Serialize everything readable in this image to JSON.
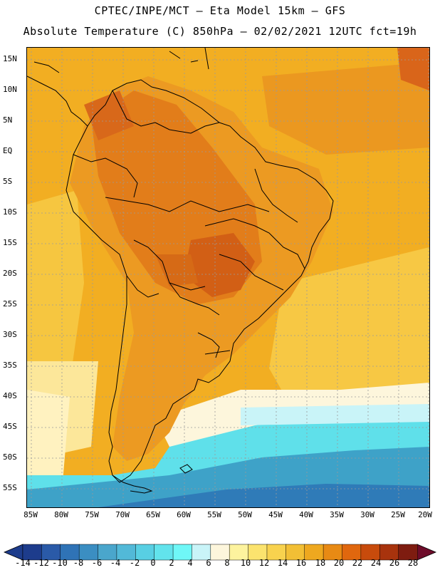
{
  "titles": {
    "line1": "CPTEC/INPE/MCT –  Eta Model 15km – GFS",
    "line2": "Absolute Temperature (C) 850hPa – 02/02/2021 12UTC fct=19h"
  },
  "lat_labels": [
    "15N",
    "10N",
    "5N",
    "EQ",
    "5S",
    "10S",
    "15S",
    "20S",
    "25S",
    "30S",
    "35S",
    "40S",
    "45S",
    "50S",
    "55S"
  ],
  "lon_labels": [
    "85W",
    "80W",
    "75W",
    "70W",
    "65W",
    "60W",
    "55W",
    "50W",
    "45W",
    "40W",
    "35W",
    "30W",
    "25W",
    "20W"
  ],
  "colorbar": {
    "labels": [
      "-14",
      "-12",
      "-10",
      "-8",
      "-6",
      "-4",
      "-2",
      "0",
      "2",
      "4",
      "6",
      "8",
      "10",
      "12",
      "14",
      "16",
      "18",
      "20",
      "22",
      "24",
      "26",
      "28"
    ],
    "colors": [
      "#1d3c8c",
      "#2a5aa8",
      "#2f73b6",
      "#3b8ec2",
      "#4aa6cc",
      "#52b9d8",
      "#58cfe3",
      "#62e3ec",
      "#6ff7f7",
      "#c9f4f8",
      "#fdf6dc",
      "#fdf39e",
      "#fbe36e",
      "#f8d24e",
      "#f2bf35",
      "#eea81f",
      "#e88a14",
      "#e0670e",
      "#c84b0c",
      "#a8330d",
      "#7e1c10"
    ],
    "under_color": "#1d3c8c",
    "over_color": "#6e0c2a"
  },
  "colors": {
    "ocean_base": "#f2ae22",
    "land_warm": "#e27d1a",
    "land_hot": "#d25f15",
    "south_cool": "#fce79a",
    "pale": "#fff7dc",
    "cyan": "#5fe0ea",
    "blue": "#3ea2c8",
    "deep_blue": "#2f7bb8"
  }
}
